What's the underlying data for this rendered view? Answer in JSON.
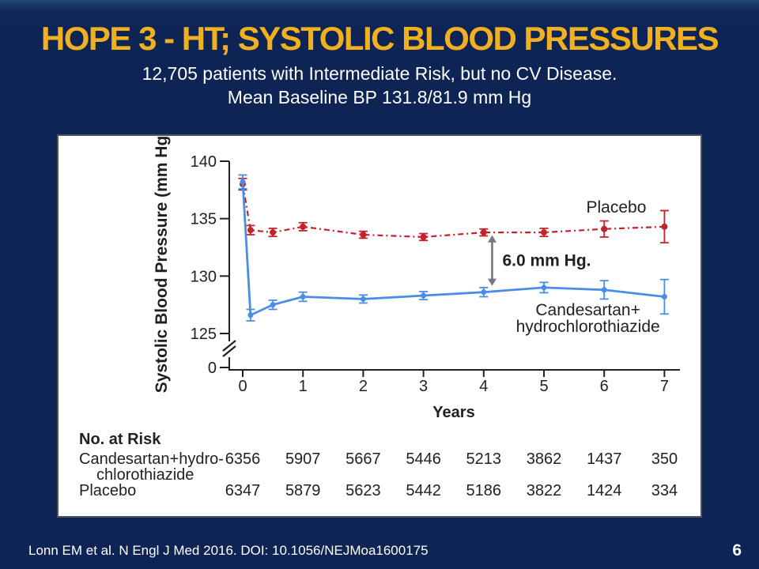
{
  "slide": {
    "title": "HOPE 3 - HT; SYSTOLIC BLOOD PRESSURES",
    "subtitle_lines": [
      "12,705 patients with Intermediate Risk, but no CV Disease.",
      "Mean Baseline BP 131.8/81.9 mm Hg"
    ],
    "citation": "Lonn EM et al. N Engl J Med 2016. DOI: 10.1056/NEJMoa1600175",
    "page_number": "6",
    "colors": {
      "background": "#0d2455",
      "background_top": "#27477b",
      "title": "#f0b01f",
      "text": "#ffffff"
    }
  },
  "chart_data": {
    "type": "line",
    "title": "",
    "xlabel": "Years",
    "ylabel": "Systolic Blood Pressure (mm Hg)",
    "x_ticks": [
      0,
      1,
      2,
      3,
      4,
      5,
      6,
      7
    ],
    "y_ticks": [
      0,
      125,
      130,
      135,
      140
    ],
    "y_axis_break_between": [
      0,
      125
    ],
    "ylim": [
      125,
      140
    ],
    "xlim": [
      0,
      7.3
    ],
    "grid": false,
    "x": [
      0,
      0.13,
      0.5,
      1,
      2,
      3,
      4,
      5,
      6,
      7
    ],
    "series": [
      {
        "name": "Placebo",
        "color": "#c2232a",
        "line_style": "dash-dot",
        "values": [
          138.0,
          134.0,
          133.8,
          134.3,
          133.6,
          133.4,
          133.8,
          133.8,
          134.1,
          134.3
        ],
        "errors": [
          0.5,
          0.4,
          0.35,
          0.35,
          0.3,
          0.3,
          0.3,
          0.35,
          0.7,
          1.4
        ]
      },
      {
        "name": "Candesartan+hydrochlorothiazide",
        "color": "#4b8de6",
        "line_style": "solid",
        "values": [
          138.2,
          126.6,
          127.5,
          128.2,
          128.0,
          128.3,
          128.6,
          129.0,
          128.8,
          128.2
        ],
        "errors": [
          0.6,
          0.5,
          0.4,
          0.4,
          0.35,
          0.35,
          0.4,
          0.45,
          0.8,
          1.5
        ]
      }
    ],
    "series_labels": [
      {
        "lines": [
          "Placebo"
        ],
        "x": 6.2,
        "y": 136.0
      },
      {
        "lines": [
          "Candesartan+",
          "hydrochlorothiazide"
        ],
        "x": 5.73,
        "y": 127.05
      }
    ],
    "annotation": {
      "text": "6.0 mm Hg.",
      "color": "#77787b",
      "x": 4.14,
      "from": 133.55,
      "to": 129.15
    },
    "risk_table": {
      "header": "No. at Risk",
      "rows": [
        {
          "label_lines": [
            "Candesartan+hydro-",
            "chlorothiazide"
          ],
          "values": [
            6356,
            5907,
            5667,
            5446,
            5213,
            3862,
            1437,
            350
          ]
        },
        {
          "label_lines": [
            "Placebo"
          ],
          "values": [
            6347,
            5879,
            5623,
            5442,
            5186,
            3822,
            1424,
            334
          ]
        }
      ]
    }
  }
}
